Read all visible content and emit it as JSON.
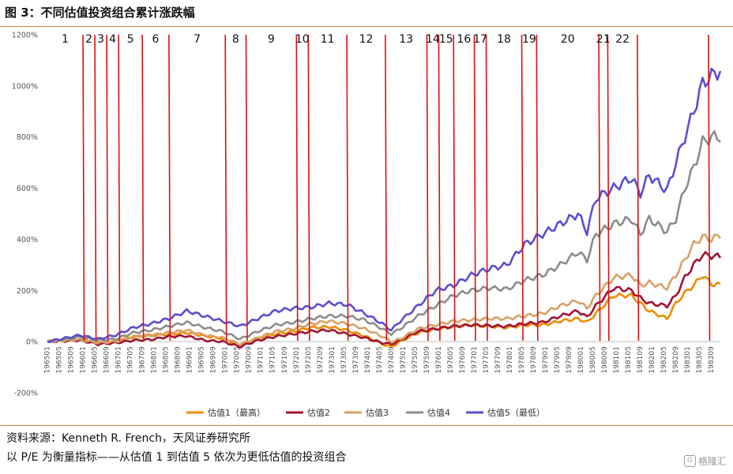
{
  "title": "图 3：不同估值投资组合累计涨跌幅",
  "source": "资料来源：Kenneth R. French，天风证券研究所",
  "note": "以 P/E 为衡量指标——从估值 1 到估值 5 依次为更低估值的投资组合",
  "watermark": "格隆汇",
  "chart_data": {
    "type": "line",
    "title": "不同估值投资组合累计涨跌幅",
    "ylim": [
      -200,
      1200
    ],
    "yticks": [
      -200,
      0,
      200,
      400,
      600,
      800,
      1000,
      1200
    ],
    "ytick_labels": [
      "-200%",
      "0%",
      "200%",
      "400%",
      "600%",
      "800%",
      "1000%",
      "1200%"
    ],
    "x_start_month": "196501",
    "x_end_month": "198312",
    "xtick_labels": [
      "196501",
      "196505",
      "196509",
      "196601",
      "196605",
      "196609",
      "196701",
      "196705",
      "196709",
      "196801",
      "196805",
      "196809",
      "196901",
      "196905",
      "196909",
      "197001",
      "197005",
      "197009",
      "197101",
      "197105",
      "197109",
      "197201",
      "197205",
      "197209",
      "197301",
      "197305",
      "197309",
      "197401",
      "197405",
      "197409",
      "197501",
      "197505",
      "197509",
      "197601",
      "197605",
      "197609",
      "197701",
      "197705",
      "197709",
      "197801",
      "197805",
      "197809",
      "197901",
      "197905",
      "197909",
      "198001",
      "198005",
      "198009",
      "198101",
      "198105",
      "198109",
      "198201",
      "198205",
      "198209",
      "198301",
      "198305",
      "198309"
    ],
    "legend_position": "bottom",
    "colors": [
      "#f08c00",
      "#a01433",
      "#d9a066",
      "#8c8c8c",
      "#5a4fd0"
    ],
    "regime_line_color": "#e01010",
    "regime_boundaries": [
      "196601",
      "196605",
      "196609",
      "196701",
      "196709",
      "196806",
      "197001",
      "197008",
      "197201",
      "197205",
      "197306",
      "197407",
      "197509",
      "197601",
      "197606",
      "197701",
      "197705",
      "197805",
      "197810",
      "198007",
      "198010",
      "198108",
      "198308"
    ],
    "regime_labels": [
      "1",
      "2",
      "3",
      "4",
      "5",
      "6",
      "7",
      "8",
      "9",
      "10",
      "11",
      "12",
      "13",
      "14",
      "15",
      "16",
      "17",
      "18",
      "19",
      "20",
      "21",
      "22"
    ],
    "series": [
      {
        "name": "估值1（最高）",
        "color": "#f08c00",
        "points": [
          [
            "196501",
            0
          ],
          [
            "196512",
            10
          ],
          [
            "196606",
            0
          ],
          [
            "196612",
            3
          ],
          [
            "196706",
            18
          ],
          [
            "196712",
            25
          ],
          [
            "196806",
            28
          ],
          [
            "196812",
            35
          ],
          [
            "196906",
            22
          ],
          [
            "196912",
            12
          ],
          [
            "197006",
            -15
          ],
          [
            "197012",
            12
          ],
          [
            "197106",
            30
          ],
          [
            "197112",
            40
          ],
          [
            "197206",
            55
          ],
          [
            "197212",
            58
          ],
          [
            "197306",
            45
          ],
          [
            "197312",
            22
          ],
          [
            "197406",
            -10
          ],
          [
            "197409",
            -20
          ],
          [
            "197412",
            0
          ],
          [
            "197506",
            35
          ],
          [
            "197512",
            48
          ],
          [
            "197606",
            60
          ],
          [
            "197612",
            65
          ],
          [
            "197706",
            60
          ],
          [
            "197712",
            55
          ],
          [
            "197806",
            65
          ],
          [
            "197812",
            65
          ],
          [
            "197906",
            80
          ],
          [
            "197912",
            90
          ],
          [
            "198003",
            75
          ],
          [
            "198006",
            110
          ],
          [
            "198012",
            180
          ],
          [
            "198106",
            180
          ],
          [
            "198109",
            150
          ],
          [
            "198112",
            120
          ],
          [
            "198206",
            90
          ],
          [
            "198209",
            150
          ],
          [
            "198212",
            190
          ],
          [
            "198303",
            220
          ],
          [
            "198306",
            260
          ],
          [
            "198309",
            225
          ],
          [
            "198312",
            222
          ]
        ]
      },
      {
        "name": "估值2",
        "color": "#a01433",
        "points": [
          [
            "196501",
            0
          ],
          [
            "196512",
            5
          ],
          [
            "196606",
            -10
          ],
          [
            "196612",
            -5
          ],
          [
            "196706",
            5
          ],
          [
            "196712",
            8
          ],
          [
            "196806",
            20
          ],
          [
            "196812",
            22
          ],
          [
            "196906",
            5
          ],
          [
            "196912",
            0
          ],
          [
            "197006",
            -20
          ],
          [
            "197012",
            5
          ],
          [
            "197106",
            20
          ],
          [
            "197112",
            30
          ],
          [
            "197206",
            40
          ],
          [
            "197212",
            45
          ],
          [
            "197306",
            30
          ],
          [
            "197312",
            15
          ],
          [
            "197406",
            -5
          ],
          [
            "197409",
            -10
          ],
          [
            "197412",
            5
          ],
          [
            "197506",
            40
          ],
          [
            "197512",
            50
          ],
          [
            "197606",
            60
          ],
          [
            "197612",
            65
          ],
          [
            "197706",
            62
          ],
          [
            "197712",
            60
          ],
          [
            "197806",
            70
          ],
          [
            "197812",
            75
          ],
          [
            "197906",
            100
          ],
          [
            "197912",
            120
          ],
          [
            "198003",
            95
          ],
          [
            "198006",
            140
          ],
          [
            "198012",
            210
          ],
          [
            "198106",
            200
          ],
          [
            "198109",
            170
          ],
          [
            "198112",
            150
          ],
          [
            "198206",
            140
          ],
          [
            "198209",
            180
          ],
          [
            "198212",
            250
          ],
          [
            "198303",
            300
          ],
          [
            "198306",
            340
          ],
          [
            "198309",
            335
          ],
          [
            "198312",
            332
          ]
        ]
      },
      {
        "name": "估值3",
        "color": "#d9a066",
        "points": [
          [
            "196501",
            0
          ],
          [
            "196512",
            8
          ],
          [
            "196606",
            -5
          ],
          [
            "196612",
            0
          ],
          [
            "196706",
            20
          ],
          [
            "196712",
            25
          ],
          [
            "196806",
            35
          ],
          [
            "196812",
            45
          ],
          [
            "196906",
            25
          ],
          [
            "196912",
            15
          ],
          [
            "197006",
            -10
          ],
          [
            "197012",
            15
          ],
          [
            "197106",
            40
          ],
          [
            "197112",
            50
          ],
          [
            "197206",
            70
          ],
          [
            "197212",
            80
          ],
          [
            "197306",
            70
          ],
          [
            "197312",
            50
          ],
          [
            "197406",
            20
          ],
          [
            "197409",
            0
          ],
          [
            "197412",
            10
          ],
          [
            "197506",
            50
          ],
          [
            "197512",
            65
          ],
          [
            "197606",
            80
          ],
          [
            "197612",
            85
          ],
          [
            "197706",
            90
          ],
          [
            "197712",
            90
          ],
          [
            "197806",
            100
          ],
          [
            "197812",
            110
          ],
          [
            "197906",
            140
          ],
          [
            "197912",
            160
          ],
          [
            "198003",
            130
          ],
          [
            "198006",
            180
          ],
          [
            "198012",
            250
          ],
          [
            "198106",
            260
          ],
          [
            "198109",
            220
          ],
          [
            "198112",
            230
          ],
          [
            "198206",
            210
          ],
          [
            "198209",
            260
          ],
          [
            "198212",
            320
          ],
          [
            "198303",
            380
          ],
          [
            "198306",
            410
          ],
          [
            "198309",
            400
          ],
          [
            "198312",
            418
          ]
        ]
      },
      {
        "name": "估值4",
        "color": "#8c8c8c",
        "points": [
          [
            "196501",
            0
          ],
          [
            "196512",
            18
          ],
          [
            "196606",
            5
          ],
          [
            "196612",
            10
          ],
          [
            "196706",
            35
          ],
          [
            "196712",
            45
          ],
          [
            "196806",
            60
          ],
          [
            "196812",
            75
          ],
          [
            "196906",
            55
          ],
          [
            "196912",
            40
          ],
          [
            "197006",
            10
          ],
          [
            "197012",
            40
          ],
          [
            "197106",
            65
          ],
          [
            "197112",
            75
          ],
          [
            "197206",
            90
          ],
          [
            "197212",
            100
          ],
          [
            "197306",
            100
          ],
          [
            "197312",
            85
          ],
          [
            "197406",
            50
          ],
          [
            "197409",
            30
          ],
          [
            "197412",
            50
          ],
          [
            "197506",
            100
          ],
          [
            "197512",
            140
          ],
          [
            "197606",
            180
          ],
          [
            "197612",
            200
          ],
          [
            "197706",
            210
          ],
          [
            "197712",
            205
          ],
          [
            "197806",
            240
          ],
          [
            "197812",
            260
          ],
          [
            "197906",
            300
          ],
          [
            "197912",
            350
          ],
          [
            "198003",
            320
          ],
          [
            "198006",
            420
          ],
          [
            "198012",
            460
          ],
          [
            "198106",
            480
          ],
          [
            "198109",
            420
          ],
          [
            "198112",
            480
          ],
          [
            "198206",
            430
          ],
          [
            "198209",
            480
          ],
          [
            "198212",
            600
          ],
          [
            "198303",
            680
          ],
          [
            "198306",
            780
          ],
          [
            "198309",
            800
          ],
          [
            "198312",
            800
          ]
        ]
      },
      {
        "name": "估值5（最低）",
        "color": "#5a4fd0",
        "points": [
          [
            "196501",
            0
          ],
          [
            "196512",
            25
          ],
          [
            "196606",
            10
          ],
          [
            "196612",
            25
          ],
          [
            "196706",
            55
          ],
          [
            "196712",
            70
          ],
          [
            "196806",
            90
          ],
          [
            "196812",
            120
          ],
          [
            "196906",
            100
          ],
          [
            "196912",
            80
          ],
          [
            "197006",
            60
          ],
          [
            "197012",
            90
          ],
          [
            "197106",
            120
          ],
          [
            "197112",
            130
          ],
          [
            "197206",
            135
          ],
          [
            "197212",
            150
          ],
          [
            "197306",
            145
          ],
          [
            "197312",
            110
          ],
          [
            "197406",
            70
          ],
          [
            "197409",
            45
          ],
          [
            "197412",
            80
          ],
          [
            "197506",
            140
          ],
          [
            "197512",
            200
          ],
          [
            "197606",
            220
          ],
          [
            "197612",
            260
          ],
          [
            "197706",
            285
          ],
          [
            "197712",
            300
          ],
          [
            "197806",
            380
          ],
          [
            "197812",
            420
          ],
          [
            "197906",
            460
          ],
          [
            "197912",
            500
          ],
          [
            "198003",
            430
          ],
          [
            "198006",
            560
          ],
          [
            "198012",
            600
          ],
          [
            "198106",
            640
          ],
          [
            "198109",
            580
          ],
          [
            "198112",
            650
          ],
          [
            "198206",
            590
          ],
          [
            "198209",
            700
          ],
          [
            "198212",
            800
          ],
          [
            "198303",
            900
          ],
          [
            "198306",
            1010
          ],
          [
            "198309",
            1040
          ],
          [
            "198312",
            1060
          ]
        ]
      }
    ]
  }
}
